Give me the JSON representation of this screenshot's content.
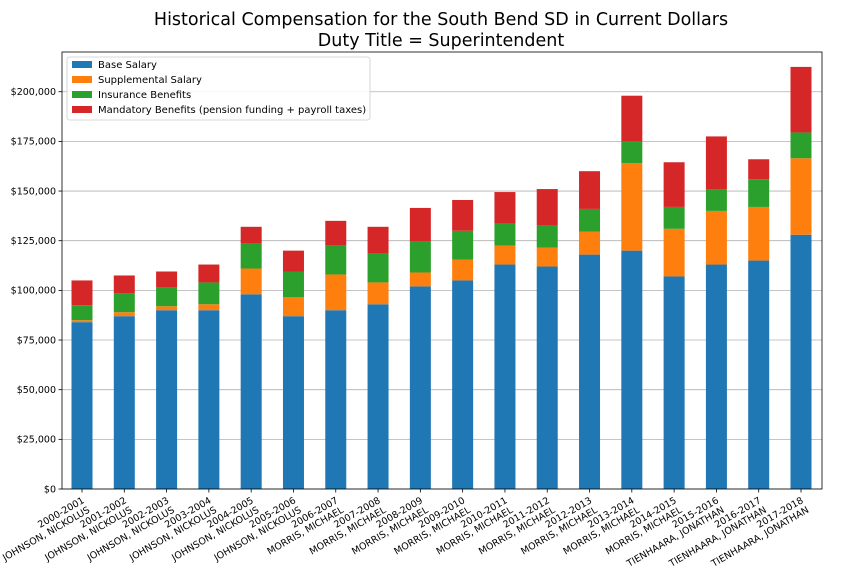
{
  "chart_data": {
    "type": "bar",
    "stacked": true,
    "title": "Historical Compensation for the South Bend SD in Current Dollars",
    "subtitle": "Duty Title = Superintendent",
    "xlabel": "",
    "ylabel": "",
    "ylim": [
      0,
      220000
    ],
    "yticks": [
      0,
      25000,
      50000,
      75000,
      100000,
      125000,
      150000,
      175000,
      200000
    ],
    "ytick_labels": [
      "$0",
      "$25,000",
      "$50,000",
      "$75,000",
      "$100,000",
      "$125,000",
      "$150,000",
      "$175,000",
      "$200,000"
    ],
    "grid": "horizontal",
    "legend_position": "top-left",
    "categories": [
      [
        "2000-2001",
        "JOHNSON, NICKOLUS"
      ],
      [
        "2001-2002",
        "JOHNSON, NICKOLUS"
      ],
      [
        "2002-2003",
        "JOHNSON, NICKOLUS"
      ],
      [
        "2003-2004",
        "JOHNSON, NICKOLUS"
      ],
      [
        "2004-2005",
        "JOHNSON, NICKOLUS"
      ],
      [
        "2005-2006",
        "JOHNSON, NICKOLUS"
      ],
      [
        "2006-2007",
        "MORRIS, MICHAEL"
      ],
      [
        "2007-2008",
        "MORRIS, MICHAEL"
      ],
      [
        "2008-2009",
        "MORRIS, MICHAEL"
      ],
      [
        "2009-2010",
        "MORRIS, MICHAEL"
      ],
      [
        "2010-2011",
        "MORRIS, MICHAEL"
      ],
      [
        "2011-2012",
        "MORRIS, MICHAEL"
      ],
      [
        "2012-2013",
        "MORRIS, MICHAEL"
      ],
      [
        "2013-2014",
        "MORRIS, MICHAEL"
      ],
      [
        "2014-2015",
        "MORRIS, MICHAEL"
      ],
      [
        "2015-2016",
        "TIENHAARA, JONATHAN"
      ],
      [
        "2016-2017",
        "TIENHAARA, JONATHAN"
      ],
      [
        "2017-2018",
        "TIENHAARA, JONATHAN"
      ]
    ],
    "series": [
      {
        "name": "Base Salary",
        "color": "#1f77b4",
        "values": [
          84000,
          87000,
          90000,
          90000,
          98000,
          87000,
          90000,
          93000,
          102000,
          105000,
          113000,
          112000,
          118000,
          120000,
          107000,
          113000,
          115000,
          128000
        ]
      },
      {
        "name": "Supplemental Salary",
        "color": "#ff7f0e",
        "values": [
          1000,
          2000,
          2000,
          3000,
          13000,
          9500,
          18000,
          11000,
          7000,
          10500,
          9500,
          9500,
          11500,
          44000,
          24000,
          27000,
          27000,
          38500
        ]
      },
      {
        "name": "Insurance Benefits",
        "color": "#2ca02c",
        "values": [
          7500,
          9500,
          9500,
          11000,
          12500,
          13000,
          14500,
          14500,
          15500,
          14500,
          11000,
          11000,
          11500,
          11000,
          11000,
          11000,
          14000,
          13000
        ]
      },
      {
        "name": "Mandatory Benefits (pension funding + payroll taxes)",
        "color": "#d62728",
        "values": [
          12500,
          9000,
          8000,
          9000,
          8500,
          10500,
          12500,
          13500,
          17000,
          15500,
          16000,
          18500,
          19000,
          23000,
          22500,
          26500,
          10000,
          33000
        ]
      }
    ]
  }
}
